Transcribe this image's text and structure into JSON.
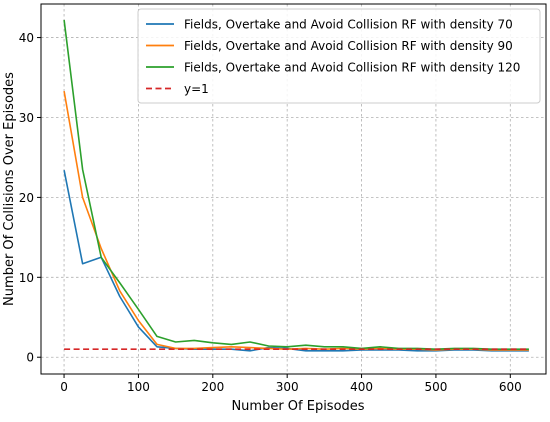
{
  "chart_data": {
    "type": "line",
    "title": "",
    "xlabel": "Number Of Episodes",
    "ylabel": "Number Of Collisions Over Episodes",
    "xlim": [
      -31,
      648
    ],
    "ylim": [
      -2.1,
      44.2
    ],
    "xticks": [
      0,
      100,
      200,
      300,
      400,
      500,
      600
    ],
    "yticks": [
      0,
      10,
      20,
      30,
      40
    ],
    "grid": true,
    "grid_style": "dashed",
    "legend_position": "upper-right",
    "series": [
      {
        "name": "Fields, Overtake and Avoid Collision RF with density 70",
        "color": "#1f77b4",
        "style": "solid",
        "x": [
          0,
          25,
          50,
          75,
          100,
          125,
          150,
          175,
          200,
          225,
          250,
          275,
          300,
          325,
          350,
          375,
          400,
          425,
          450,
          475,
          500,
          525,
          550,
          575,
          600,
          625
        ],
        "y": [
          23.4,
          11.7,
          12.5,
          7.6,
          3.8,
          1.3,
          1.1,
          1.0,
          1.0,
          1.0,
          0.8,
          1.2,
          1.1,
          0.8,
          0.8,
          0.8,
          0.9,
          0.9,
          0.9,
          0.8,
          0.8,
          0.9,
          0.9,
          0.8,
          0.8,
          0.8
        ]
      },
      {
        "name": "Fields, Overtake and Avoid Collision RF with density 90",
        "color": "#ff7f0e",
        "style": "solid",
        "x": [
          0,
          25,
          50,
          75,
          100,
          125,
          150,
          175,
          200,
          225,
          250,
          275,
          300,
          325,
          350,
          375,
          400,
          425,
          450,
          475,
          500,
          525,
          550,
          575,
          600,
          625
        ],
        "y": [
          33.3,
          20.0,
          13.6,
          8.3,
          4.6,
          1.6,
          1.1,
          1.1,
          1.2,
          1.3,
          1.2,
          1.1,
          1.0,
          1.1,
          1.0,
          1.1,
          1.0,
          1.1,
          1.0,
          1.0,
          0.9,
          1.0,
          1.0,
          0.9,
          0.9,
          0.9
        ]
      },
      {
        "name": "Fields, Overtake and Avoid Collision RF with density 120",
        "color": "#2ca02c",
        "style": "solid",
        "x": [
          0,
          25,
          50,
          75,
          100,
          125,
          150,
          175,
          200,
          225,
          250,
          275,
          300,
          325,
          350,
          375,
          400,
          425,
          450,
          475,
          500,
          525,
          550,
          575,
          600,
          625
        ],
        "y": [
          42.2,
          23.5,
          12.5,
          9.3,
          6.0,
          2.6,
          1.9,
          2.1,
          1.8,
          1.6,
          1.9,
          1.4,
          1.3,
          1.5,
          1.3,
          1.3,
          1.1,
          1.3,
          1.1,
          1.1,
          1.0,
          1.1,
          1.1,
          1.0,
          1.0,
          1.0
        ]
      },
      {
        "name": "y=1",
        "color": "#d62728",
        "style": "dashed",
        "x": [
          0,
          625
        ],
        "y": [
          1,
          1
        ]
      }
    ]
  }
}
